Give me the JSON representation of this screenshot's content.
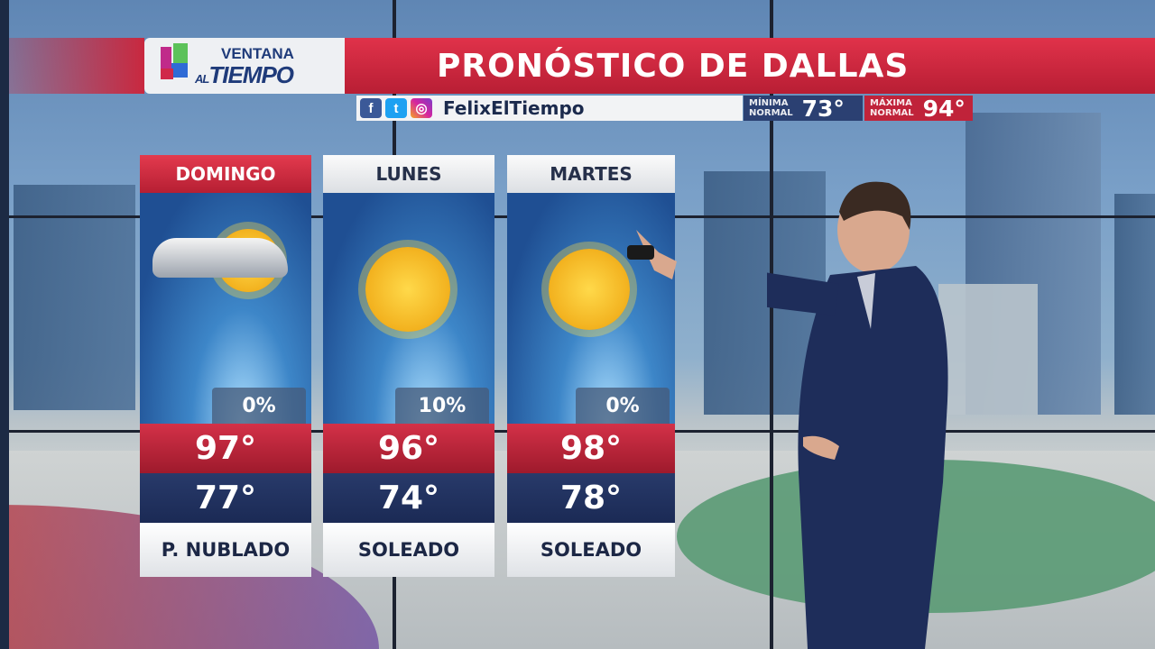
{
  "branding": {
    "logo_line1": "VENTANA",
    "logo_al": "AL",
    "logo_line2": "TIEMPO",
    "network_logo": "univision-logo"
  },
  "header": {
    "title": "PRONÓSTICO DE DALLAS"
  },
  "social": {
    "icons": [
      "facebook-icon",
      "twitter-icon",
      "instagram-icon"
    ],
    "handle": "FelixElTiempo"
  },
  "normals": {
    "min": {
      "label1": "MÍNIMA",
      "label2": "NORMAL",
      "value": "73°",
      "color": "#2b4072"
    },
    "max": {
      "label1": "MÁXIMA",
      "label2": "NORMAL",
      "value": "94°",
      "color": "#c0233a"
    }
  },
  "forecast": [
    {
      "day": "DOMINGO",
      "icon": "partly-cloudy-icon",
      "precip": "0%",
      "high": "97°",
      "low": "77°",
      "condition": "P. NUBLADO"
    },
    {
      "day": "LUNES",
      "icon": "sun-icon",
      "precip": "10%",
      "high": "96°",
      "low": "74°",
      "condition": "SOLEADO"
    },
    {
      "day": "MARTES",
      "icon": "sun-icon",
      "precip": "0%",
      "high": "98°",
      "low": "78°",
      "condition": "SOLEADO"
    }
  ]
}
